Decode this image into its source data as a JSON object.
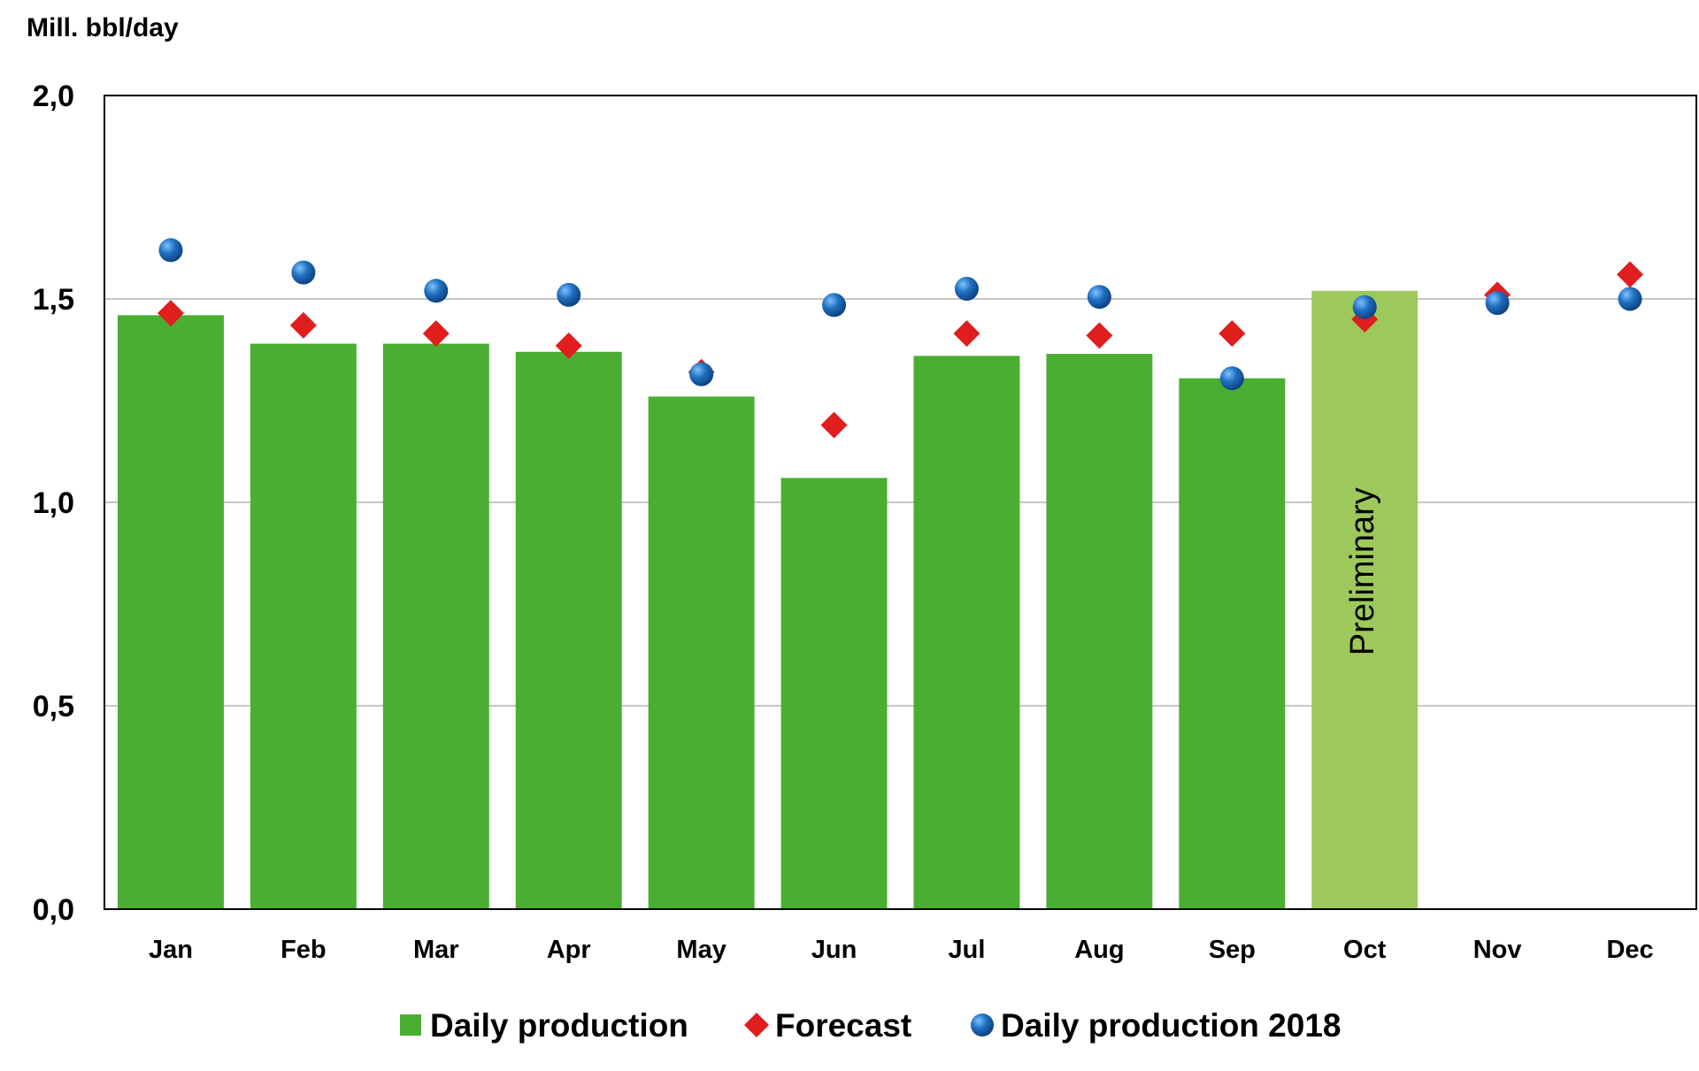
{
  "chart_data": {
    "type": "bar",
    "unit_label": "Mill. bbl/day",
    "categories": [
      "Jan",
      "Feb",
      "Mar",
      "Apr",
      "May",
      "Jun",
      "Jul",
      "Aug",
      "Sep",
      "Oct",
      "Nov",
      "Dec"
    ],
    "y_ticks": [
      "0,0",
      "0,5",
      "1,0",
      "1,5",
      "2,0"
    ],
    "ylim": [
      0,
      2.0
    ],
    "grid": true,
    "series": [
      {
        "name": "Daily production",
        "kind": "bar",
        "color": "#4aae32",
        "preliminary_color": "#9dc85c",
        "values": [
          1.46,
          1.39,
          1.39,
          1.37,
          1.26,
          1.06,
          1.36,
          1.365,
          1.305,
          1.52,
          null,
          null
        ]
      },
      {
        "name": "Forecast",
        "kind": "diamond",
        "color": "#e01e1e",
        "values": [
          1.465,
          1.435,
          1.415,
          1.385,
          1.32,
          1.19,
          1.415,
          1.41,
          1.415,
          1.45,
          1.51,
          1.56
        ]
      },
      {
        "name": "Daily production 2018",
        "kind": "circle",
        "color": "#1f6fbf",
        "values": [
          1.62,
          1.565,
          1.52,
          1.51,
          1.315,
          1.485,
          1.525,
          1.505,
          1.305,
          1.48,
          1.49,
          1.5
        ]
      }
    ],
    "annotations": [
      {
        "category": "Oct",
        "text": "Preliminary"
      }
    ],
    "legend_position": "bottom"
  }
}
